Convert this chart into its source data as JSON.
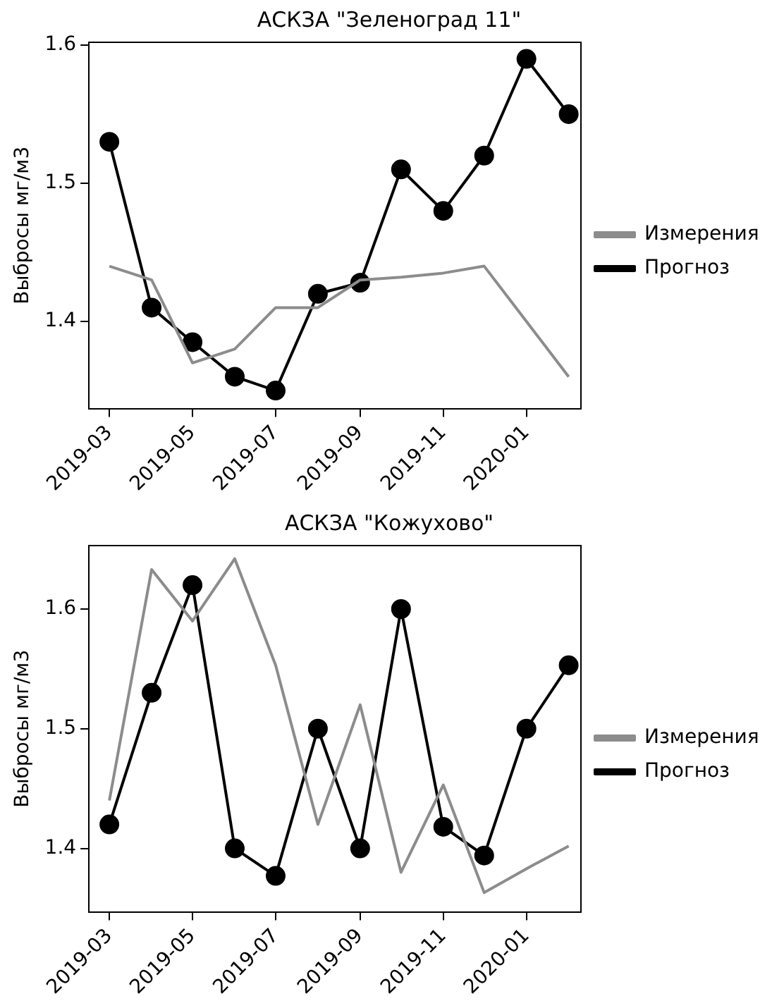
{
  "chart_data": [
    {
      "type": "line",
      "title": "АСКЗА \"Зеленоград 11\"",
      "ylabel": "Выбросы мг/м3",
      "x": [
        "2019-03",
        "2019-04",
        "2019-05",
        "2019-06",
        "2019-07",
        "2019-08",
        "2019-09",
        "2019-10",
        "2019-11",
        "2019-12",
        "2020-01",
        "2020-02"
      ],
      "series": [
        {
          "name": "Измерения",
          "color": "#8c8c8c",
          "marker": "none",
          "values": [
            1.44,
            1.43,
            1.37,
            1.38,
            1.41,
            1.41,
            1.43,
            1.432,
            1.435,
            1.44,
            1.4,
            1.36
          ]
        },
        {
          "name": "Прогноз",
          "color": "#000000",
          "marker": "circle",
          "values": [
            1.53,
            1.41,
            1.385,
            1.36,
            1.35,
            1.42,
            1.428,
            1.51,
            1.48,
            1.52,
            1.59,
            1.55
          ]
        }
      ],
      "xlim": [
        "2019-02-14",
        "2020-02-10"
      ],
      "xticks": [
        "2019-03",
        "2019-05",
        "2019-07",
        "2019-09",
        "2019-11",
        "2020-01"
      ],
      "ylim": [
        1.337,
        1.602
      ],
      "yticks": [
        1.4,
        1.5,
        1.6
      ],
      "grid": false,
      "legend": "right"
    },
    {
      "type": "line",
      "title": "АСКЗА \"Кожухово\"",
      "ylabel": "Выбросы мг/м3",
      "x": [
        "2019-03",
        "2019-04",
        "2019-05",
        "2019-06",
        "2019-07",
        "2019-08",
        "2019-09",
        "2019-10",
        "2019-11",
        "2019-12",
        "2020-01",
        "2020-02"
      ],
      "series": [
        {
          "name": "Измерения",
          "color": "#8c8c8c",
          "marker": "none",
          "values": [
            1.44,
            1.633,
            1.59,
            1.642,
            1.553,
            1.42,
            1.52,
            1.38,
            1.453,
            1.363,
            1.383,
            1.402
          ]
        },
        {
          "name": "Прогноз",
          "color": "#000000",
          "marker": "circle",
          "values": [
            1.42,
            1.53,
            1.62,
            1.4,
            1.377,
            1.5,
            1.4,
            1.6,
            1.418,
            1.394,
            1.5,
            1.553
          ]
        }
      ],
      "xlim": [
        "2019-02-14",
        "2020-02-10"
      ],
      "xticks": [
        "2019-03",
        "2019-05",
        "2019-07",
        "2019-09",
        "2019-11",
        "2020-01"
      ],
      "ylim": [
        1.347,
        1.653
      ],
      "yticks": [
        1.4,
        1.5,
        1.6
      ],
      "grid": false,
      "legend": "right"
    }
  ]
}
